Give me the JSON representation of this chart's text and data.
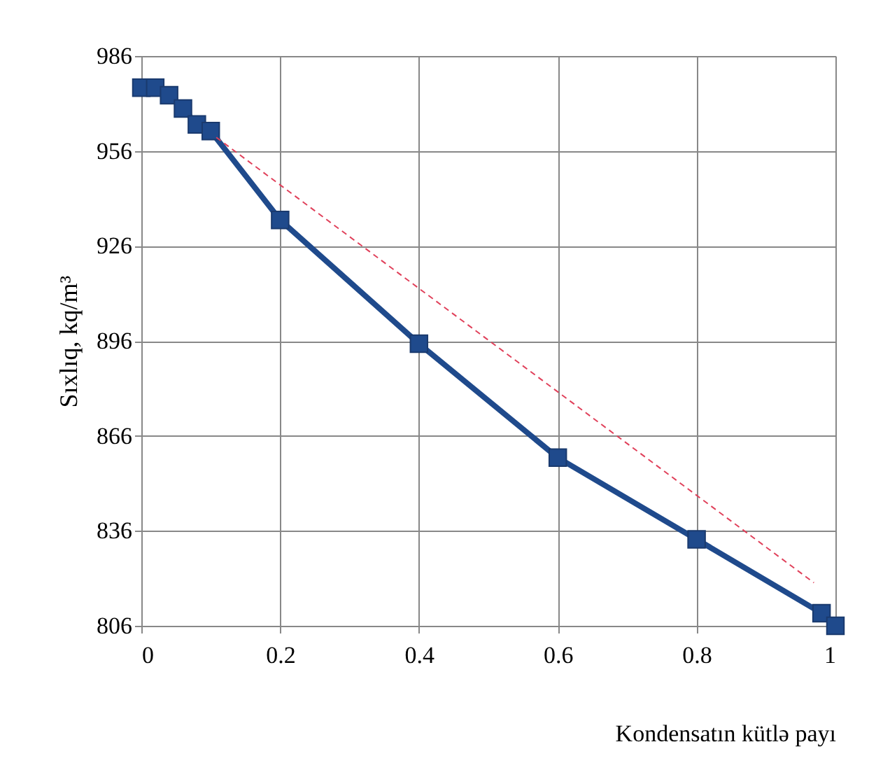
{
  "chart_data": {
    "type": "line",
    "xlabel": "Kondensatın kütlə payı",
    "ylabel": "Sıxlıq, kq/m³",
    "xlim": [
      0,
      1
    ],
    "xticks": [
      0,
      0.2,
      0.4,
      0.6,
      0.8,
      1
    ],
    "ylim": [
      806,
      986
    ],
    "yticks": [
      806,
      836,
      866,
      896,
      926,
      956,
      986
    ],
    "grid": true,
    "marker": "square",
    "line_style": "solid",
    "series": [
      {
        "color": "#1f4a8c",
        "x": [
          0,
          0.02,
          0.04,
          0.06,
          0.08,
          0.1,
          0.2,
          0.4,
          0.6,
          0.8,
          0.98,
          1
        ],
        "values": [
          976,
          976,
          973.6,
          969.4,
          964.4,
          962.3,
          934.2,
          895.1,
          859.1,
          833.3,
          810,
          806
        ]
      },
      {
        "type": "line",
        "color": "#e0405a",
        "marker": "none",
        "line_style": "dashed",
        "x": [
          0.108,
          0.969
        ],
        "values": [
          960.3,
          819.6
        ]
      }
    ]
  }
}
